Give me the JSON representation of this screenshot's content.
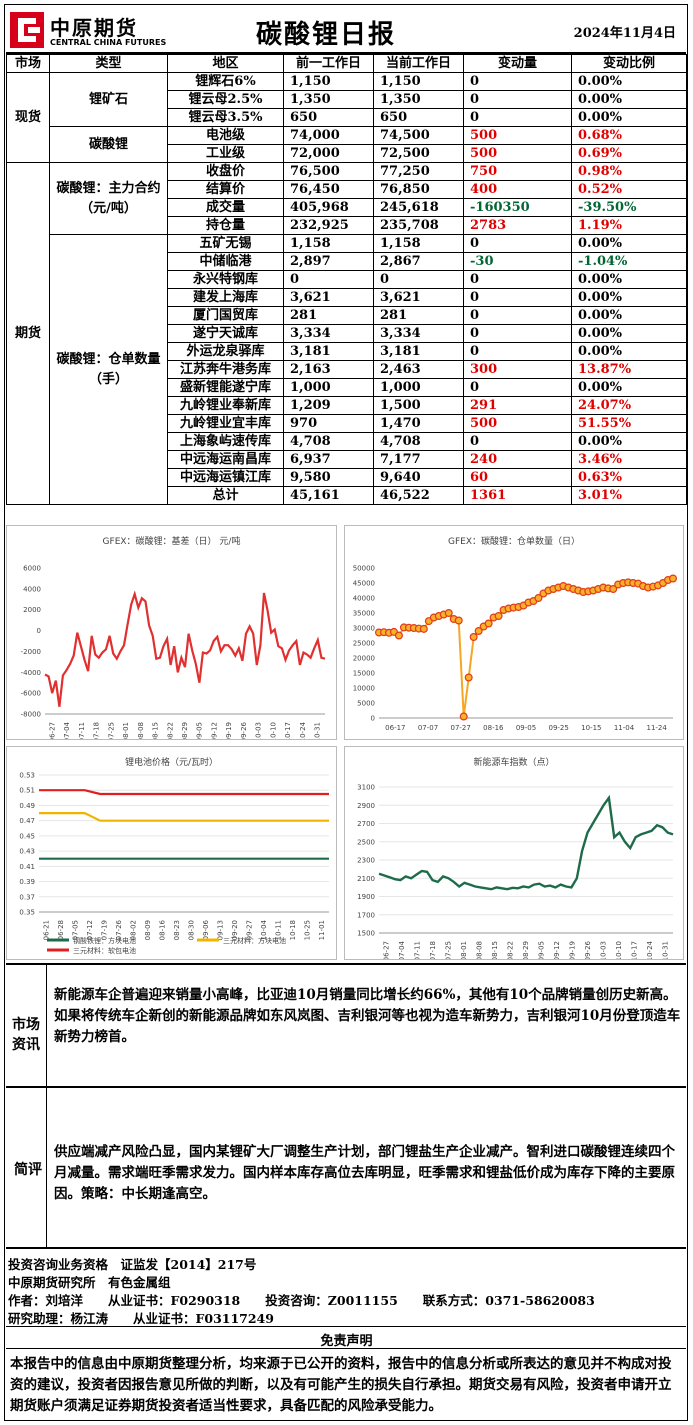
{
  "header": {
    "logo_cn": "中原期货",
    "logo_en": "CENTRAL CHINA FUTURES",
    "title": "碳酸锂日报",
    "date": "2024年11月4日"
  },
  "table": {
    "headers": [
      "市场",
      "类型",
      "地区",
      "前一工作日",
      "当前工作日",
      "变动量",
      "变动比例"
    ],
    "groups": [
      {
        "market": "现货",
        "types": [
          {
            "type": "锂矿石",
            "rows": [
              {
                "region": "锂辉石6%",
                "prev": "1,150",
                "cur": "1,150",
                "chg": "0",
                "pct": "0.00%",
                "color": "k"
              },
              {
                "region": "锂云母2.5%",
                "prev": "1,350",
                "cur": "1,350",
                "chg": "0",
                "pct": "0.00%",
                "color": "k"
              },
              {
                "region": "锂云母3.5%",
                "prev": "650",
                "cur": "650",
                "chg": "0",
                "pct": "0.00%",
                "color": "k"
              }
            ]
          },
          {
            "type": "碳酸锂",
            "rows": [
              {
                "region": "电池级",
                "prev": "74,000",
                "cur": "74,500",
                "chg": "500",
                "pct": "0.68%",
                "color": "r"
              },
              {
                "region": "工业级",
                "prev": "72,000",
                "cur": "72,500",
                "chg": "500",
                "pct": "0.69%",
                "color": "r"
              }
            ]
          }
        ]
      },
      {
        "market": "期货",
        "types": [
          {
            "type": "碳酸锂：主力合约（元/吨）",
            "rows": [
              {
                "region": "收盘价",
                "prev": "76,500",
                "cur": "77,250",
                "chg": "750",
                "pct": "0.98%",
                "color": "r"
              },
              {
                "region": "结算价",
                "prev": "76,450",
                "cur": "76,850",
                "chg": "400",
                "pct": "0.52%",
                "color": "r"
              },
              {
                "region": "成交量",
                "prev": "405,968",
                "cur": "245,618",
                "chg": "-160350",
                "pct": "-39.50%",
                "color": "g"
              },
              {
                "region": "持仓量",
                "prev": "232,925",
                "cur": "235,708",
                "chg": "2783",
                "pct": "1.19%",
                "color": "r"
              }
            ]
          },
          {
            "type": "碳酸锂：仓单数量（手）",
            "rows": [
              {
                "region": "五矿无锡",
                "prev": "1,158",
                "cur": "1,158",
                "chg": "0",
                "pct": "0.00%",
                "color": "k"
              },
              {
                "region": "中储临港",
                "prev": "2,897",
                "cur": "2,867",
                "chg": "-30",
                "pct": "-1.04%",
                "color": "g"
              },
              {
                "region": "永兴特钢库",
                "prev": "0",
                "cur": "0",
                "chg": "0",
                "pct": "0.00%",
                "color": "k"
              },
              {
                "region": "建发上海库",
                "prev": "3,621",
                "cur": "3,621",
                "chg": "0",
                "pct": "0.00%",
                "color": "k"
              },
              {
                "region": "厦门国贸库",
                "prev": "281",
                "cur": "281",
                "chg": "0",
                "pct": "0.00%",
                "color": "k"
              },
              {
                "region": "遂宁天诚库",
                "prev": "3,334",
                "cur": "3,334",
                "chg": "0",
                "pct": "0.00%",
                "color": "k"
              },
              {
                "region": "外运龙泉驿库",
                "prev": "3,181",
                "cur": "3,181",
                "chg": "0",
                "pct": "0.00%",
                "color": "k"
              },
              {
                "region": "江苏奔牛港务库",
                "prev": "2,163",
                "cur": "2,463",
                "chg": "300",
                "pct": "13.87%",
                "color": "r"
              },
              {
                "region": "盛新锂能遂宁库",
                "prev": "1,000",
                "cur": "1,000",
                "chg": "0",
                "pct": "0.00%",
                "color": "k"
              },
              {
                "region": "九岭锂业奉新库",
                "prev": "1,209",
                "cur": "1,500",
                "chg": "291",
                "pct": "24.07%",
                "color": "r"
              },
              {
                "region": "九岭锂业宜丰库",
                "prev": "970",
                "cur": "1,470",
                "chg": "500",
                "pct": "51.55%",
                "color": "r"
              },
              {
                "region": "上海象屿速传库",
                "prev": "4,708",
                "cur": "4,708",
                "chg": "0",
                "pct": "0.00%",
                "color": "k"
              },
              {
                "region": "中远海运南昌库",
                "prev": "6,937",
                "cur": "7,177",
                "chg": "240",
                "pct": "3.46%",
                "color": "r"
              },
              {
                "region": "中远海运镇江库",
                "prev": "9,580",
                "cur": "9,640",
                "chg": "60",
                "pct": "0.63%",
                "color": "r"
              },
              {
                "region": "总计",
                "prev": "45,161",
                "cur": "46,522",
                "chg": "1361",
                "pct": "3.01%",
                "color": "r"
              }
            ]
          }
        ]
      }
    ]
  },
  "chart_data": [
    {
      "type": "line",
      "title": "GFEX：碳酸锂：基差（日） 元/吨",
      "ylim": [
        -8000,
        6000
      ],
      "yticks": [
        "6000",
        "4000",
        "2000",
        "0",
        "-2000",
        "-4000",
        "-6000",
        "-8000"
      ],
      "xticks": [
        "06-27",
        "07-04",
        "07-11",
        "07-18",
        "07-25",
        "08-01",
        "08-08",
        "08-15",
        "08-22",
        "08-29",
        "09-05",
        "09-12",
        "09-19",
        "09-26",
        "10-03",
        "10-10",
        "10-17",
        "10-24",
        "10-31"
      ],
      "series": [
        {
          "color": "#e03030",
          "values": [
            -4200,
            -4400,
            -6000,
            -4800,
            -7300,
            -4300,
            -3800,
            -3200,
            -2400,
            -200,
            -1500,
            -2800,
            -3900,
            -500,
            -2300,
            -2600,
            -2100,
            -1800,
            -500,
            -2200,
            -2700,
            -2000,
            -1400,
            600,
            2500,
            3500,
            2200,
            3100,
            2800,
            500,
            -500,
            -2700,
            -2600,
            -1500,
            -800,
            -3300,
            -1500,
            -4000,
            -2600,
            -3500,
            -300,
            -1900,
            -3200,
            -5000,
            -2100,
            -2200,
            -1900,
            -1000,
            -600,
            -2000,
            -1400,
            -1400,
            -1800,
            -2400,
            -1700,
            -2900,
            -300,
            400,
            -300,
            -3300,
            -1400,
            3600,
            1900,
            -200,
            100,
            -1500,
            -1700,
            -2800,
            -1900,
            -1400,
            -1000,
            -3300,
            -2100,
            -2300,
            -2600,
            -1700,
            -900,
            -2600,
            -2700
          ]
        }
      ]
    },
    {
      "type": "scatter",
      "title": "GFEX：碳酸锂：仓单数量（日）",
      "ylim": [
        0,
        50000
      ],
      "yticks": [
        "50000",
        "45000",
        "40000",
        "35000",
        "30000",
        "25000",
        "20000",
        "15000",
        "10000",
        "5000",
        "0"
      ],
      "xticks": [
        "06-17",
        "07-07",
        "07-27",
        "08-16",
        "09-05",
        "09-25",
        "10-15",
        "11-04",
        "11-24"
      ],
      "series": [
        {
          "color": "#f5a623",
          "values": [
            28500,
            28600,
            28400,
            28700,
            27500,
            30200,
            30100,
            30000,
            29800,
            29700,
            32300,
            33500,
            34000,
            34500,
            35000,
            33000,
            32500,
            500,
            13500,
            27000,
            29000,
            30500,
            31500,
            33500,
            34000,
            36000,
            36500,
            36800,
            37000,
            37500,
            38500,
            39000,
            40000,
            41500,
            42500,
            43000,
            43500,
            44000,
            43500,
            43000,
            42500,
            42000,
            42200,
            42500,
            43000,
            43500,
            43200,
            43000,
            44500,
            45000,
            45200,
            45000,
            44800,
            44000,
            43500,
            43800,
            44200,
            45000,
            46000,
            46500
          ]
        }
      ]
    },
    {
      "type": "line",
      "title": "锂电池价格（元/瓦时）",
      "ylim": [
        0.35,
        0.53
      ],
      "yticks": [
        "0.53",
        "0.51",
        "0.49",
        "0.47",
        "0.45",
        "0.43",
        "0.41",
        "0.39",
        "0.37",
        "0.35"
      ],
      "xticks": [
        "06-21",
        "06-28",
        "07-05",
        "07-12",
        "07-19",
        "07-26",
        "08-02",
        "08-09",
        "08-16",
        "08-23",
        "08-30",
        "09-06",
        "09-13",
        "09-20",
        "09-27",
        "10-04",
        "10-11",
        "10-18",
        "10-25",
        "11-01"
      ],
      "series": [
        {
          "name": "钢酸铁锂：方块电池",
          "color": "#1e6b4a",
          "values": [
            0.42,
            0.42,
            0.42,
            0.42,
            0.42,
            0.42,
            0.42,
            0.42,
            0.42,
            0.42,
            0.42,
            0.42,
            0.42,
            0.42,
            0.42,
            0.42,
            0.42,
            0.42,
            0.42,
            0.42
          ]
        },
        {
          "name": "三元材料：方块电池",
          "color": "#f0b400",
          "values": [
            0.48,
            0.48,
            0.48,
            0.48,
            0.47,
            0.47,
            0.47,
            0.47,
            0.47,
            0.47,
            0.47,
            0.47,
            0.47,
            0.47,
            0.47,
            0.47,
            0.47,
            0.47,
            0.47,
            0.47
          ]
        },
        {
          "name": "三元材料：软包电池",
          "color": "#e02020",
          "values": [
            0.51,
            0.51,
            0.51,
            0.51,
            0.505,
            0.505,
            0.505,
            0.505,
            0.505,
            0.505,
            0.505,
            0.505,
            0.505,
            0.505,
            0.505,
            0.505,
            0.505,
            0.505,
            0.505,
            0.505
          ]
        }
      ]
    },
    {
      "type": "line",
      "title": "新能源车指数（点）",
      "ylim": [
        1500,
        3100
      ],
      "yticks": [
        "3100",
        "2900",
        "2700",
        "2500",
        "2300",
        "2100",
        "1900",
        "1700",
        "1500"
      ],
      "xticks": [
        "06-27",
        "07-04",
        "07-11",
        "07-18",
        "07-25",
        "08-01",
        "08-08",
        "08-15",
        "08-22",
        "08-29",
        "09-05",
        "09-12",
        "09-19",
        "09-26",
        "10-03",
        "10-10",
        "10-17",
        "10-24",
        "10-31"
      ],
      "series": [
        {
          "color": "#1e6b4a",
          "values": [
            2150,
            2130,
            2110,
            2090,
            2080,
            2120,
            2100,
            2140,
            2180,
            2170,
            2080,
            2060,
            2120,
            2100,
            2060,
            2010,
            2050,
            2030,
            2010,
            2000,
            1990,
            1980,
            2000,
            1990,
            1980,
            1995,
            1990,
            2010,
            2000,
            2030,
            2040,
            2010,
            2020,
            2000,
            2030,
            2010,
            2000,
            2100,
            2400,
            2600,
            2700,
            2800,
            2900,
            2980,
            2550,
            2600,
            2500,
            2430,
            2550,
            2580,
            2600,
            2620,
            2680,
            2660,
            2600,
            2580
          ]
        }
      ]
    }
  ],
  "market_info": {
    "label": "市场资讯",
    "text": "新能源车企普遍迎来销量小高峰，比亚迪10月销量同比增长约66%，其他有10个品牌销量创历史新高。如果将传统车企新创的新能源品牌如东风岚图、吉利银河等也视为造车新势力，吉利银河10月份登顶造车新势力榜首。"
  },
  "review": {
    "label": "简评",
    "text": "供应端减产风险凸显，国内某锂矿大厂调整生产计划，部门锂盐生产企业减产。智利进口碳酸锂连续四个月减量。需求端旺季需求发力。国内样本库存高位去库明显，旺季需求和锂盐低价成为库存下降的主要原因。策略：中长期逢高空。"
  },
  "footer": {
    "line1": "投资咨询业务资格　证监发【2014】217号",
    "line2": "中原期货研究所　有色金属组",
    "line3": "作者：刘培洋　　从业证书：F0290318　　投资咨询：Z0011155　　联系方式：0371-58620083",
    "line4": "研究助理：杨江涛　　从业证书：F03117249",
    "disclaimer_title": "免责声明",
    "disclaimer": "本报告中的信息由中原期货整理分析，均来源于已公开的资料，报告中的信息分析或所表达的意见并不构成对投资的建议，投资者因报告意见所做的判断，以及有可能产生的损失自行承担。期货交易有风险，投资者申请开立期货账户须满足证券期货投资者适当性要求，具备匹配的风险承受能力。"
  }
}
